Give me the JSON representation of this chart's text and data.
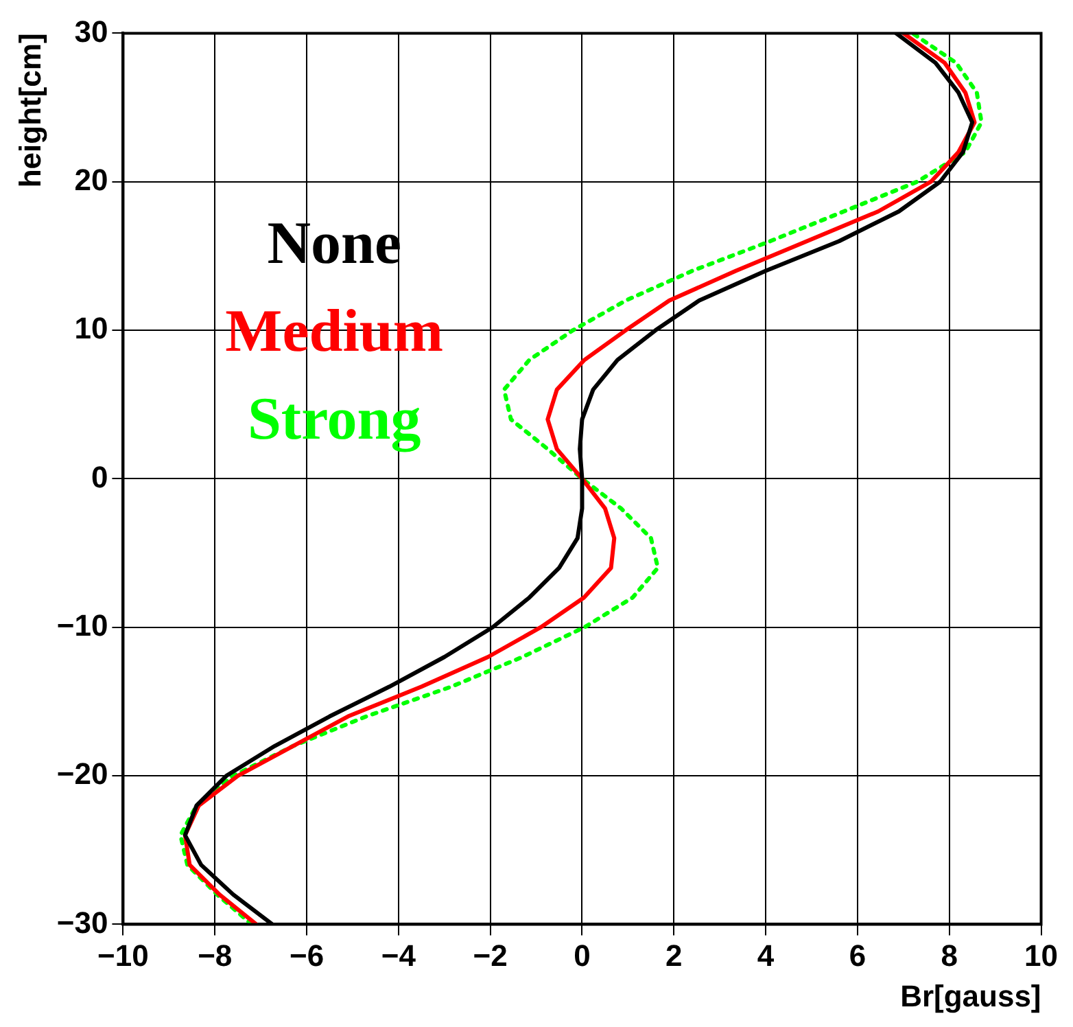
{
  "chart_data": {
    "type": "line",
    "xlabel": "Br[gauss]",
    "ylabel": "height[cm]",
    "xlim": [
      -10,
      10
    ],
    "xticks": [
      -10,
      -8,
      -6,
      -4,
      -2,
      0,
      2,
      4,
      6,
      8,
      10
    ],
    "ylim": [
      -30,
      30
    ],
    "yticks": [
      -30,
      -20,
      -10,
      0,
      10,
      20,
      30
    ],
    "grid": true,
    "legend": "top left",
    "marker": "none",
    "series": [
      {
        "name": "None",
        "color": "#000000",
        "line_style": "solid",
        "x": [
          -6.75,
          -7.6,
          -8.3,
          -8.65,
          -8.4,
          -7.75,
          -6.7,
          -5.5,
          -4.2,
          -3.0,
          -1.95,
          -1.15,
          -0.5,
          -0.1,
          0,
          0,
          -0.05,
          0,
          0.24,
          0.77,
          1.6,
          2.55,
          4.0,
          5.6,
          6.9,
          7.8,
          8.3,
          8.5,
          8.2,
          7.7,
          6.84
        ],
        "values": [
          -30,
          -28,
          -26,
          -24,
          -22,
          -20,
          -18,
          -16,
          -14,
          -12,
          -10,
          -8,
          -6,
          -4,
          -2,
          0,
          2,
          4,
          6,
          8,
          10,
          12,
          14,
          16,
          18,
          20,
          22,
          24,
          26,
          28,
          30
        ]
      },
      {
        "name": "Medium",
        "color": "#ff0000",
        "line_style": "solid",
        "x": [
          -7.1,
          -7.9,
          -8.55,
          -8.65,
          -8.35,
          -7.5,
          -6.3,
          -5.1,
          -3.5,
          -2.05,
          -0.9,
          0.04,
          0.63,
          0.7,
          0.5,
          0,
          -0.55,
          -0.75,
          -0.55,
          0.05,
          0.95,
          1.9,
          3.35,
          4.9,
          6.45,
          7.6,
          8.2,
          8.55,
          8.35,
          7.9,
          7.0
        ],
        "values": [
          -30,
          -28,
          -26,
          -24,
          -22,
          -20,
          -18,
          -16,
          -14,
          -12,
          -10,
          -8,
          -6,
          -4,
          -2,
          0,
          2,
          4,
          6,
          8,
          10,
          12,
          14,
          16,
          18,
          20,
          22,
          24,
          26,
          28,
          30
        ]
      },
      {
        "name": "Strong",
        "color": "#00ff00",
        "line_style": "dotted",
        "x": [
          -7.2,
          -7.95,
          -8.6,
          -8.75,
          -8.4,
          -7.6,
          -6.3,
          -4.7,
          -2.85,
          -1.3,
          0.05,
          1.1,
          1.65,
          1.5,
          0.85,
          0,
          -0.75,
          -1.55,
          -1.7,
          -1.15,
          -0.2,
          0.95,
          2.4,
          4.1,
          5.7,
          7.3,
          8.35,
          8.7,
          8.6,
          8.15,
          7.2
        ],
        "values": [
          -30,
          -28,
          -26,
          -24,
          -22,
          -20,
          -18,
          -16,
          -14,
          -12,
          -10,
          -8,
          -6,
          -4,
          -2,
          0,
          2,
          4,
          6,
          8,
          10,
          12,
          14,
          16,
          18,
          20,
          22,
          24,
          26,
          28,
          30
        ]
      }
    ]
  }
}
